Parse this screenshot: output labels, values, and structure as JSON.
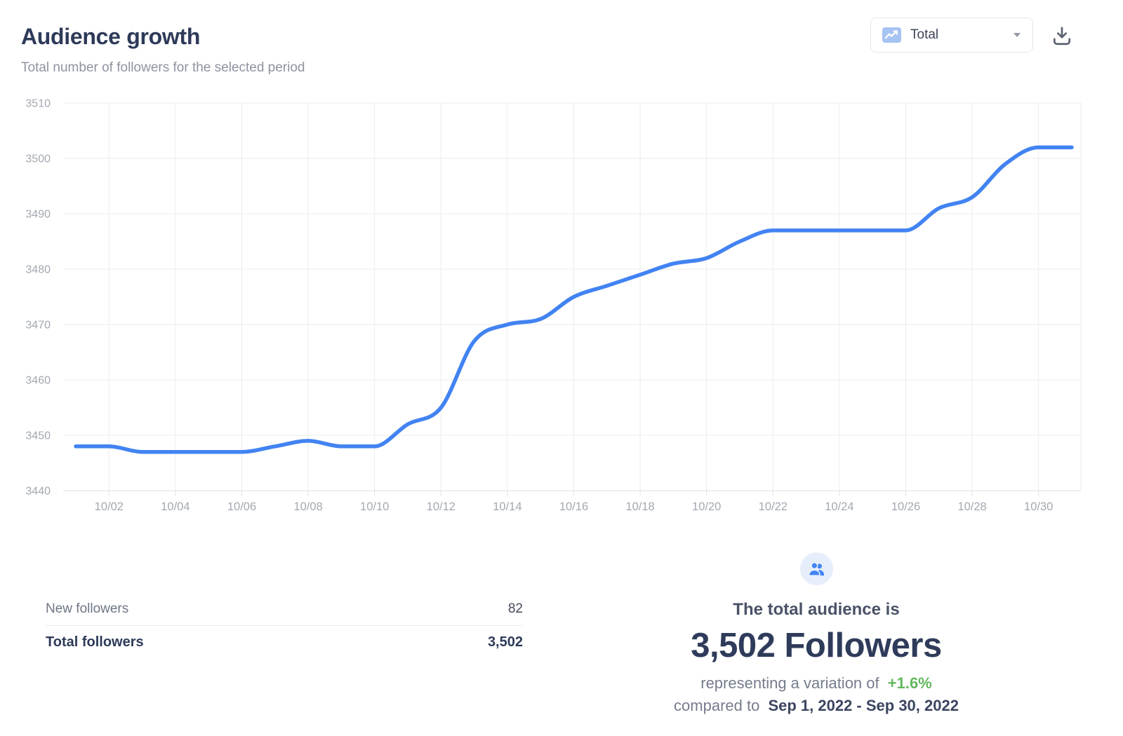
{
  "header": {
    "title": "Audience growth",
    "subtitle": "Total number of followers for the selected period"
  },
  "toolbar": {
    "metric_selector": {
      "value": "Total",
      "icon": "line-chart-icon"
    },
    "download_icon": "download-icon"
  },
  "chart_data": {
    "type": "line",
    "title": "Audience growth",
    "xlabel": "",
    "ylabel": "",
    "x": [
      "10/01",
      "10/02",
      "10/03",
      "10/04",
      "10/05",
      "10/06",
      "10/07",
      "10/08",
      "10/09",
      "10/10",
      "10/11",
      "10/12",
      "10/13",
      "10/14",
      "10/15",
      "10/16",
      "10/17",
      "10/18",
      "10/19",
      "10/20",
      "10/21",
      "10/22",
      "10/23",
      "10/24",
      "10/25",
      "10/26",
      "10/27",
      "10/28",
      "10/29",
      "10/30",
      "10/31"
    ],
    "values": [
      3448,
      3448,
      3447,
      3447,
      3447,
      3447,
      3448,
      3449,
      3448,
      3448,
      3452,
      3455,
      3467,
      3470,
      3471,
      3475,
      3477,
      3479,
      3481,
      3482,
      3485,
      3487,
      3487,
      3487,
      3487,
      3487,
      3491,
      3493,
      3499,
      3502,
      3502
    ],
    "x_tick_labels": [
      "10/02",
      "10/04",
      "10/06",
      "10/08",
      "10/10",
      "10/12",
      "10/14",
      "10/16",
      "10/18",
      "10/20",
      "10/22",
      "10/24",
      "10/26",
      "10/28",
      "10/30"
    ],
    "y_ticks": [
      3440,
      3450,
      3460,
      3470,
      3480,
      3490,
      3500,
      3510
    ],
    "ylim": [
      3440,
      3510
    ],
    "grid": true,
    "legend": "none",
    "line_color": "#4283f2",
    "grid_color": "#ececec",
    "axis_color": "#dcdfe4",
    "tick_label_color": "#a3a8b1"
  },
  "summary_table": {
    "rows": [
      {
        "label": "New followers",
        "value": "82"
      },
      {
        "label": "Total followers",
        "value": "3,502"
      }
    ]
  },
  "audience_widget": {
    "icon": "users-icon",
    "line1": "The total audience is",
    "headline": "3,502 Followers",
    "variation_prefix": "representing a variation of",
    "variation_value": "+1.6%",
    "variation_color": "#62b85e",
    "compare_prefix": "compared to",
    "compare_range": "Sep 1, 2022 - Sep 30, 2022"
  }
}
